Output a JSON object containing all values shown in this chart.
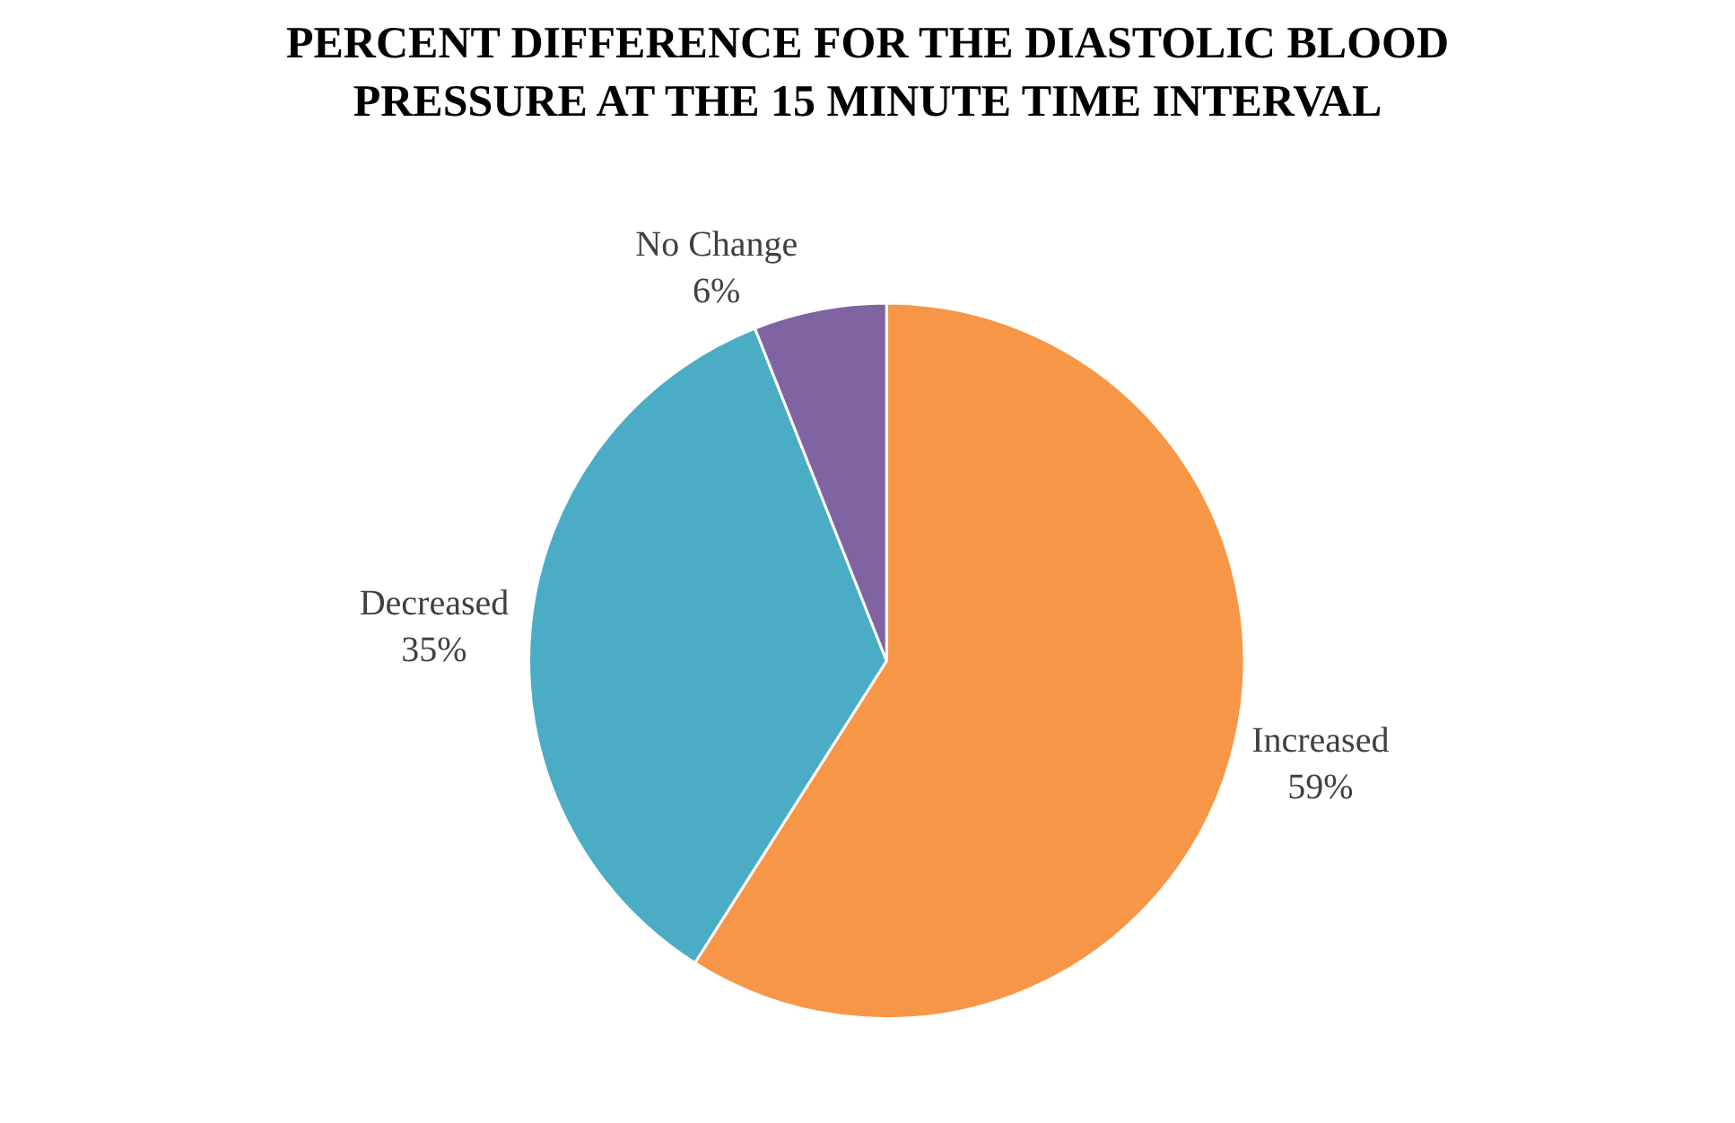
{
  "chart_data": {
    "type": "pie",
    "title": "PERCENT DIFFERENCE FOR THE DIASTOLIC BLOOD PRESSURE AT THE 15 MINUTE TIME INTERVAL",
    "categories": [
      "Increased",
      "Decreased",
      "No Change"
    ],
    "values": [
      59,
      35,
      6
    ],
    "value_labels": [
      "59%",
      "35%",
      "6%"
    ],
    "colors": [
      "#f79646",
      "#4bacc6",
      "#8064a2"
    ],
    "legend": false
  }
}
